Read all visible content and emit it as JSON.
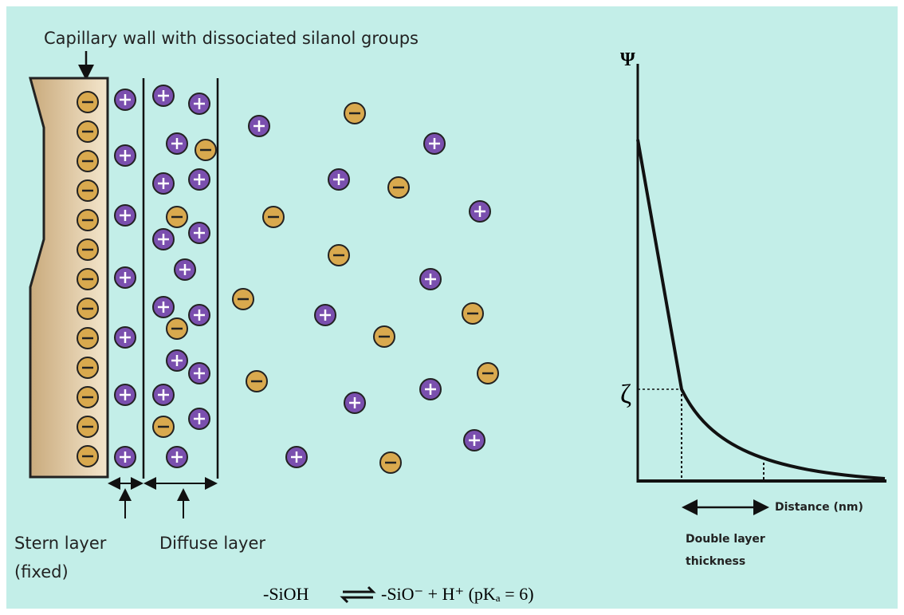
{
  "header": {
    "title": "Capillary wall with dissociated silanol groups"
  },
  "labels": {
    "stern": [
      "Stern layer",
      "(fixed)"
    ],
    "diffuse": "Diffuse layer"
  },
  "graph": {
    "y_axis": "Ψ",
    "zeta": "ζ",
    "x_axis": "Distance (nm)",
    "thickness": [
      "Double layer",
      "thickness"
    ]
  },
  "equation": {
    "left": "-SiOH",
    "right": "-SiO⁻ + H⁺ (pKₐ = 6)"
  }
}
